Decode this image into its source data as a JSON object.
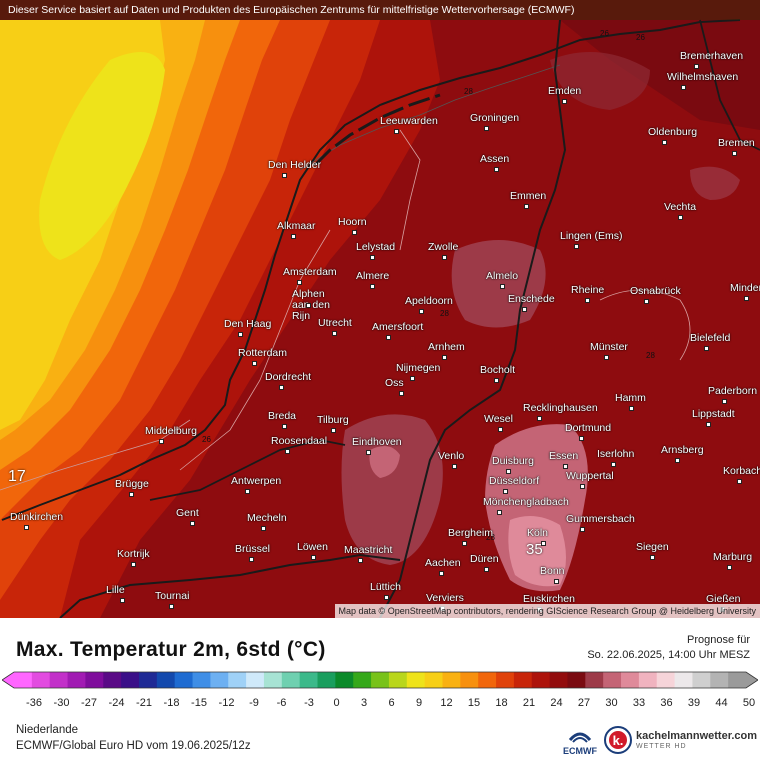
{
  "header": {
    "banner": "Dieser Service basiert auf Daten und Produkten des Europäischen Zentrums für mittelfristige Wettervorhersage (ECMWF)"
  },
  "map": {
    "attribution": "Map data © OpenStreetMap contributors, rendering GIScience Research Group @ Heidelberg University",
    "sea_value_label": "17",
    "max_value_label": "35",
    "contour_labels": [
      "26",
      "26",
      "28",
      "28",
      "28",
      "28",
      "26"
    ],
    "cities": [
      "Bremerhaven",
      "Wilhelmshaven",
      "Emden",
      "Oldenburg",
      "Bremen",
      "Leeuwarden",
      "Groningen",
      "Assen",
      "Den Helder",
      "Emmen",
      "Vechta",
      "Alkmaar",
      "Hoorn",
      "Lelystad",
      "Zwolle",
      "Lingen (Ems)",
      "Amsterdam",
      "Almere",
      "Almelo",
      "Alphen aan den Rijn",
      "Apeldoorn",
      "Enschede",
      "Rheine",
      "Osnabrück",
      "Minden",
      "Den Haag",
      "Utrecht",
      "Amersfoort",
      "Bielefeld",
      "Rotterdam",
      "Arnhem",
      "Münster",
      "Nijmegen",
      "Dordrecht",
      "Oss",
      "Bocholt",
      "Paderborn",
      "Breda",
      "Tilburg",
      "Hamm",
      "Recklinghausen",
      "Lippstadt",
      "Middelburg",
      "Wesel",
      "Dortmund",
      "Roosendaal",
      "Eindhoven",
      "Duisburg",
      "Essen",
      "Iserlohn",
      "Arnsberg",
      "Venlo",
      "Brügge",
      "Antwerpen",
      "Düsseldorf",
      "Wuppertal",
      "Korbach",
      "Mönchengladbach",
      "Dünkirchen",
      "Gent",
      "Mecheln",
      "Gummersbach",
      "Bergheim",
      "Köln",
      "Kortrijk",
      "Brüssel",
      "Löwen",
      "Maastricht",
      "Siegen",
      "Düren",
      "Marburg",
      "Aachen",
      "Bonn",
      "Lille",
      "Tournai",
      "Lüttich",
      "Gießen",
      "Verviers",
      "Euskirchen"
    ]
  },
  "legend": {
    "title": "Max. Temperatur 2m, 6std (°C)",
    "forecast_label": "Prognose für",
    "forecast_date": "So. 22.06.2025, 14:00 Uhr MESZ",
    "ticks": [
      "-36",
      "-30",
      "-27",
      "-24",
      "-21",
      "-18",
      "-15",
      "-12",
      "-9",
      "-6",
      "-3",
      "0",
      "3",
      "6",
      "9",
      "12",
      "15",
      "18",
      "21",
      "24",
      "27",
      "30",
      "33",
      "36",
      "39",
      "44",
      "50"
    ],
    "tick_values": [
      -36,
      -30,
      -27,
      -24,
      -21,
      -18,
      -15,
      -12,
      -9,
      -6,
      -3,
      0,
      3,
      6,
      9,
      12,
      15,
      18,
      21,
      24,
      27,
      30,
      33,
      36,
      39,
      44,
      50
    ],
    "colors": [
      "#ff66ff",
      "#e24be0",
      "#c230c9",
      "#a11bb3",
      "#7f0d9c",
      "#5a0a86",
      "#3a0f88",
      "#1f2a95",
      "#1349ad",
      "#1e6bd1",
      "#3f8ee6",
      "#6db0f2",
      "#9fd1f7",
      "#cfe9fa",
      "#a7e3d4",
      "#6fd0b0",
      "#3cb98a",
      "#1a9e5e",
      "#0b8a2a",
      "#35a81a",
      "#78c21a",
      "#b9d61b",
      "#eee31a",
      "#f7cf16",
      "#f9b112",
      "#f7900e",
      "#f1660b",
      "#e0420a",
      "#c82509",
      "#ad130b",
      "#920c0d",
      "#7a0a10",
      "#9d3a48",
      "#c46475",
      "#df8a9a",
      "#f0b3bf",
      "#f6d4d9",
      "#ece8ea",
      "#cfcfcf",
      "#b3b3b3",
      "#9a9a9a"
    ]
  },
  "footer": {
    "region": "Niederlande",
    "model": "ECMWF/Global Euro HD vom  19.06.2025/12z",
    "ecmwf": "ECMWF",
    "brand": "kachelmannwetter.com",
    "brand_sub": "WETTER HD"
  }
}
